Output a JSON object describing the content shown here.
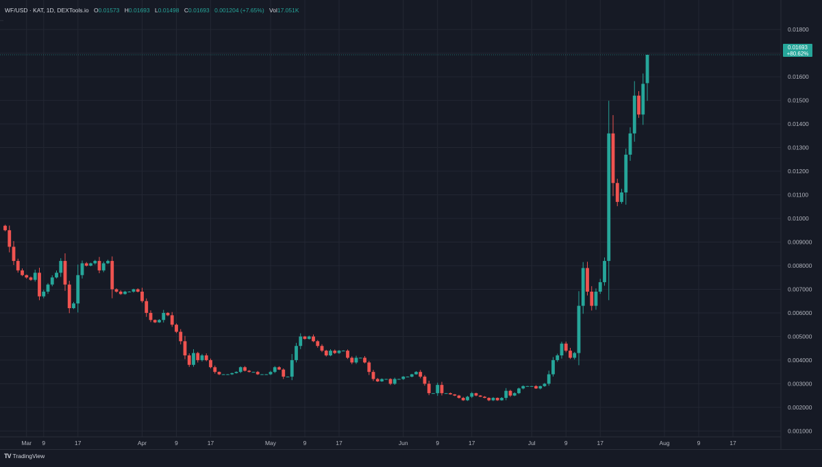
{
  "legend": {
    "symbol": "WF/USD · KAT, 1D, DEXTools.io",
    "o_label": "O",
    "o_value": "0.01573",
    "h_label": "H",
    "h_value": "0.01693",
    "l_label": "L",
    "l_value": "0.01498",
    "c_label": "C",
    "c_value": "0.01693",
    "change": "0.001204 (+7.65%)",
    "vol_label": "Vol",
    "vol_value": "17.051K"
  },
  "price_tag": {
    "price": "0.01693",
    "change": "+80.62%"
  },
  "brand": {
    "name": "TradingView"
  },
  "colors": {
    "background": "#161a25",
    "grid": "#232733",
    "up": "#26a69a",
    "down": "#ef5350",
    "axis_text": "#b2b5be"
  },
  "chart_data": {
    "type": "candlestick",
    "title": "",
    "xlabel": "",
    "ylabel": "",
    "grid": true,
    "ylim": [
      0.00075,
      0.01925
    ],
    "y_ticks": [
      "0.001000",
      "0.002000",
      "0.003000",
      "0.004000",
      "0.005000",
      "0.006000",
      "0.007000",
      "0.008000",
      "0.009000",
      "0.01000",
      "0.01100",
      "0.01200",
      "0.01300",
      "0.01400",
      "0.01500",
      "0.01600",
      "0.01700",
      "0.01800"
    ],
    "x_ticks": [
      {
        "label": "Mar",
        "day": 5
      },
      {
        "label": "9",
        "day": 9
      },
      {
        "label": "17",
        "day": 17
      },
      {
        "label": "Apr",
        "day": 32
      },
      {
        "label": "9",
        "day": 40
      },
      {
        "label": "17",
        "day": 48
      },
      {
        "label": "May",
        "day": 62
      },
      {
        "label": "9",
        "day": 70
      },
      {
        "label": "17",
        "day": 78
      },
      {
        "label": "Jun",
        "day": 93
      },
      {
        "label": "9",
        "day": 101
      },
      {
        "label": "17",
        "day": 109
      },
      {
        "label": "Jul",
        "day": 123
      },
      {
        "label": "9",
        "day": 131
      },
      {
        "label": "17",
        "day": 139
      },
      {
        "label": "Aug",
        "day": 154
      },
      {
        "label": "9",
        "day": 162
      },
      {
        "label": "17",
        "day": 170
      }
    ],
    "day_note": "day index counted from Feb 26 = 0",
    "closes": [
      0.0095,
      0.0088,
      0.0082,
      0.0078,
      0.0076,
      0.0075,
      0.0074,
      0.0077,
      0.0067,
      0.0069,
      0.0072,
      0.0075,
      0.0077,
      0.0082,
      0.0072,
      0.0062,
      0.0064,
      0.0076,
      0.0081,
      0.008,
      0.0081,
      0.0082,
      0.0078,
      0.0081,
      0.0082,
      0.007,
      0.0069,
      0.0068,
      0.0069,
      0.0069,
      0.007,
      0.0069,
      0.0065,
      0.006,
      0.0057,
      0.0056,
      0.0057,
      0.006,
      0.0059,
      0.0055,
      0.0052,
      0.0048,
      0.0042,
      0.0038,
      0.0043,
      0.004,
      0.0042,
      0.004,
      0.0037,
      0.0035,
      0.0034,
      0.0034,
      0.0034,
      0.00345,
      0.0035,
      0.0037,
      0.00355,
      0.0035,
      0.0035,
      0.0034,
      0.0034,
      0.0034,
      0.0035,
      0.0037,
      0.0036,
      0.0033,
      0.0033,
      0.004,
      0.0046,
      0.005,
      0.0049,
      0.005,
      0.0048,
      0.0046,
      0.0044,
      0.0042,
      0.0044,
      0.0043,
      0.0044,
      0.0044,
      0.0041,
      0.0039,
      0.0041,
      0.0041,
      0.0039,
      0.0035,
      0.0032,
      0.0031,
      0.0032,
      0.0032,
      0.003,
      0.0032,
      0.0032,
      0.0033,
      0.0033,
      0.0034,
      0.0035,
      0.0033,
      0.003,
      0.0026,
      0.0026,
      0.00295,
      0.0026,
      0.0026,
      0.00255,
      0.0025,
      0.0024,
      0.0023,
      0.00245,
      0.0026,
      0.0025,
      0.00245,
      0.0024,
      0.0023,
      0.0024,
      0.0023,
      0.0024,
      0.0027,
      0.0025,
      0.0026,
      0.0028,
      0.0029,
      0.0029,
      0.0029,
      0.0028,
      0.0029,
      0.003,
      0.0034,
      0.004,
      0.0042,
      0.0047,
      0.0044,
      0.0041,
      0.0043,
      0.0063,
      0.0079,
      0.0069,
      0.0063,
      0.0069,
      0.0073,
      0.0082,
      0.0136,
      0.0115,
      0.0107,
      0.0111,
      0.0127,
      0.0136,
      0.0152,
      0.0144,
      0.0157,
      0.01693
    ],
    "opens_note": "each candle opens at prior close",
    "last": {
      "open": 0.01573,
      "high": 0.01693,
      "low": 0.01498,
      "close": 0.01693,
      "volume": "17.051K",
      "change_pct": 7.65
    }
  }
}
